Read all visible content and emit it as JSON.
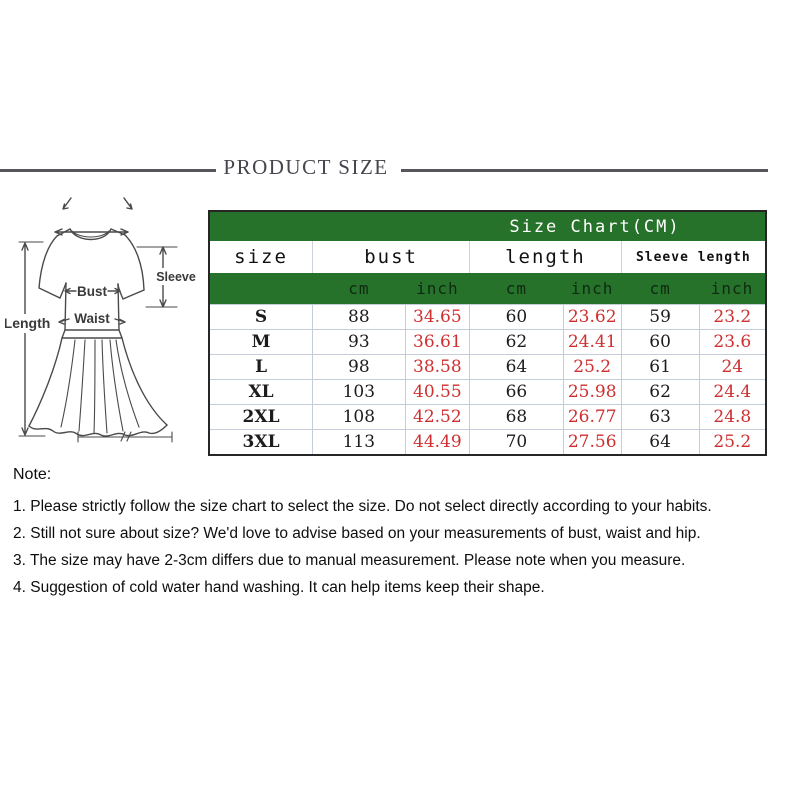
{
  "header": {
    "title": "PRODUCT SIZE"
  },
  "diagram": {
    "labels": {
      "bust": "Bust",
      "waist": "Waist",
      "length": "Length",
      "sleeve": "Sleeve"
    }
  },
  "chart_data": {
    "type": "table",
    "title": "Size Chart(CM)",
    "column_groups": [
      "size",
      "bust",
      "length",
      "Sleeve length"
    ],
    "units": [
      "cm",
      "inch",
      "cm",
      "inch",
      "cm",
      "inch"
    ],
    "rows": [
      [
        "S",
        "88",
        "34.65",
        "60",
        "23.62",
        "59",
        "23.2"
      ],
      [
        "M",
        "93",
        "36.61",
        "62",
        "24.41",
        "60",
        "23.6"
      ],
      [
        "L",
        "98",
        "38.58",
        "64",
        "25.2",
        "61",
        "24"
      ],
      [
        "XL",
        "103",
        "40.55",
        "66",
        "25.98",
        "62",
        "24.4"
      ],
      [
        "2XL",
        "108",
        "42.52",
        "68",
        "26.77",
        "63",
        "24.8"
      ],
      [
        "3XL",
        "113",
        "44.49",
        "70",
        "27.56",
        "64",
        "25.2"
      ]
    ],
    "colors": {
      "header_green": "#26722a",
      "inch_red": "#cf2f2f",
      "cm_black": "#1c1c1c"
    }
  },
  "notes": {
    "heading": "Note:",
    "items": [
      "1. Please strictly follow the size chart to select the size. Do not select directly according to your habits.",
      "2. Still not sure about size? We'd love to advise based on your measurements of bust, waist and hip.",
      "3. The size may have 2-3cm differs due to manual measurement. Please note when you measure.",
      "4. Suggestion of cold water hand washing. It can help items keep their shape."
    ]
  }
}
